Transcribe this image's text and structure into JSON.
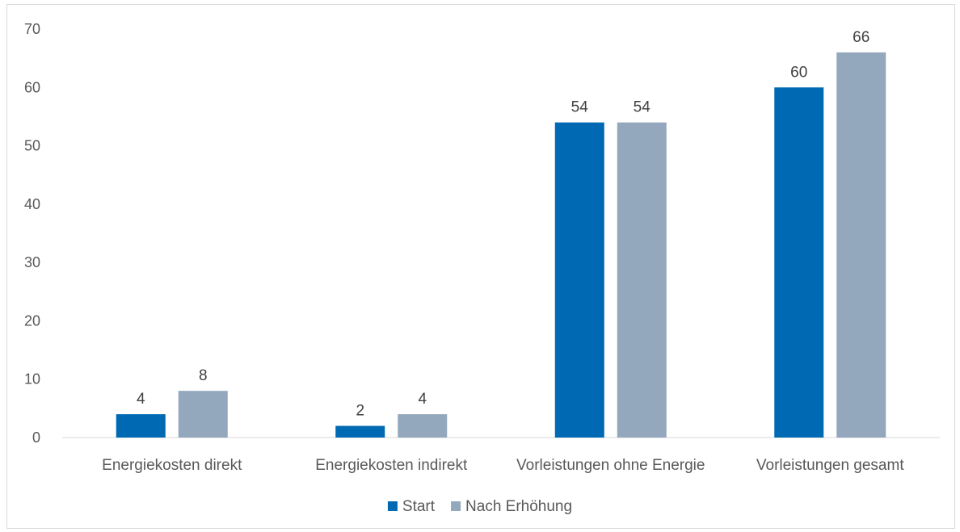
{
  "chart_data": {
    "type": "bar",
    "title": "",
    "xlabel": "",
    "ylabel": "",
    "categories": [
      "Energiekosten direkt",
      "Energiekosten indirekt",
      "Vorleistungen ohne Energie",
      "Vorleistungen gesamt"
    ],
    "series": [
      {
        "name": "Start",
        "values": [
          4,
          2,
          54,
          60
        ],
        "color": "#0069b4"
      },
      {
        "name": "Nach Erhöhung",
        "values": [
          8,
          4,
          54,
          66
        ],
        "color": "#94a8bd"
      }
    ],
    "ylim": [
      0,
      70
    ],
    "yticks": [
      "0",
      "10",
      "20",
      "30",
      "40",
      "50",
      "60",
      "70"
    ],
    "grid": false,
    "legend": "bottom-center",
    "data_labels": true
  }
}
